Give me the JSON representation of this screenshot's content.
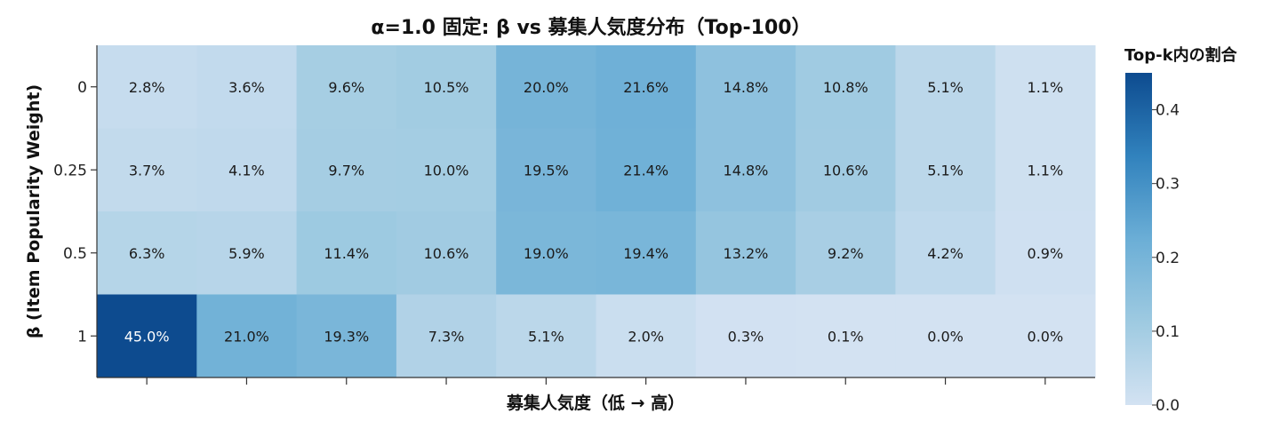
{
  "chart_data": {
    "type": "heatmap",
    "title": "α=1.0 固定: β vs 募集人気度分布（Top-100）",
    "xlabel": "募集人気度（低 → 高）",
    "ylabel": "β (Item Popularity Weight)",
    "y_categories": [
      "0",
      "0.25",
      "0.5",
      "1"
    ],
    "x_bins": 10,
    "values": [
      [
        0.028,
        0.036,
        0.096,
        0.105,
        0.2,
        0.216,
        0.148,
        0.108,
        0.051,
        0.011
      ],
      [
        0.037,
        0.041,
        0.097,
        0.1,
        0.195,
        0.214,
        0.148,
        0.106,
        0.051,
        0.011
      ],
      [
        0.063,
        0.059,
        0.114,
        0.106,
        0.19,
        0.194,
        0.132,
        0.092,
        0.042,
        0.009
      ],
      [
        0.45,
        0.21,
        0.193,
        0.073,
        0.051,
        0.02,
        0.003,
        0.001,
        0.0,
        0.0
      ]
    ],
    "labels": [
      [
        "2.8%",
        "3.6%",
        "9.6%",
        "10.5%",
        "20.0%",
        "21.6%",
        "14.8%",
        "10.8%",
        "5.1%",
        "1.1%"
      ],
      [
        "3.7%",
        "4.1%",
        "9.7%",
        "10.0%",
        "19.5%",
        "21.4%",
        "14.8%",
        "10.6%",
        "5.1%",
        "1.1%"
      ],
      [
        "6.3%",
        "5.9%",
        "11.4%",
        "10.6%",
        "19.0%",
        "19.4%",
        "13.2%",
        "9.2%",
        "4.2%",
        "0.9%"
      ],
      [
        "45.0%",
        "21.0%",
        "19.3%",
        "7.3%",
        "5.1%",
        "2.0%",
        "0.3%",
        "0.1%",
        "0.0%",
        "0.0%"
      ]
    ],
    "colorbar": {
      "title": "Top-k内の割合",
      "range": [
        0.0,
        0.45
      ],
      "ticks": [
        "0.0",
        "0.1",
        "0.2",
        "0.3",
        "0.4"
      ],
      "tick_values": [
        0.0,
        0.1,
        0.2,
        0.3,
        0.4
      ],
      "colormap": "Blues",
      "color_low": "#d3e2f2",
      "color_high": "#0d4b8f"
    },
    "grid": false
  }
}
